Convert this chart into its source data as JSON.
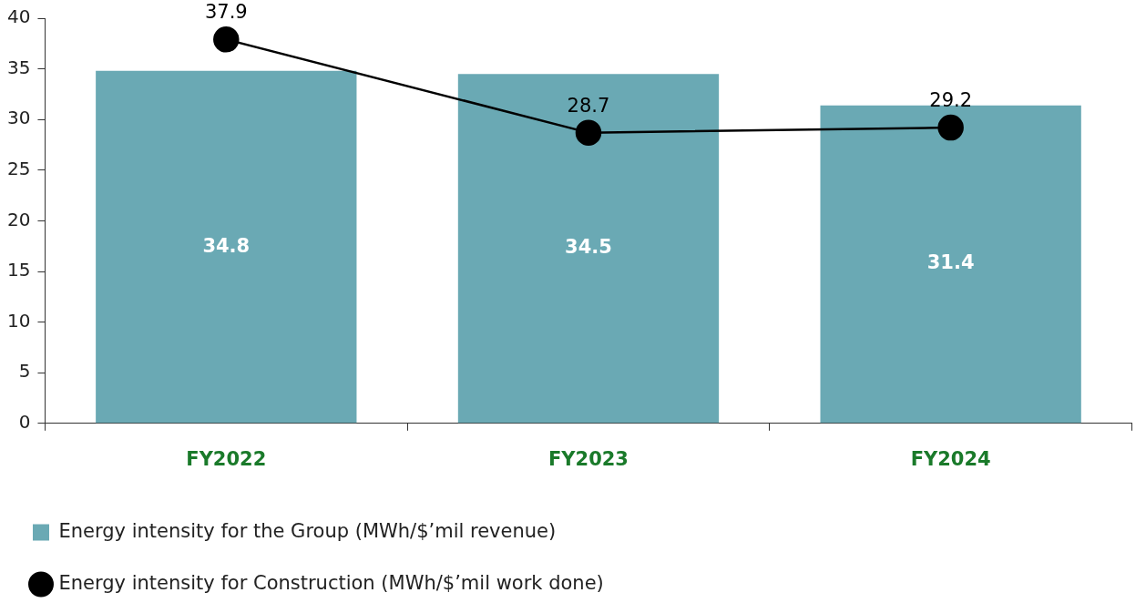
{
  "chart_data": {
    "type": "bar",
    "categories": [
      "FY2022",
      "FY2023",
      "FY2024"
    ],
    "series": [
      {
        "name": "Energy intensity for the Group (MWh/$’mil revenue)",
        "color": "#6aa9b4",
        "values": [
          34.8,
          34.5,
          31.4
        ]
      },
      {
        "name": "Energy intensity for Construction (MWh/$’mil work done)",
        "type": "line",
        "color": "#000000",
        "values": [
          37.9,
          28.7,
          29.2
        ]
      }
    ],
    "ylim": [
      0,
      40
    ],
    "yticks": [
      0,
      5,
      10,
      15,
      20,
      25,
      30,
      35,
      40
    ],
    "grid": false,
    "legend": "bottom",
    "marker": "circle",
    "line_style": "solid",
    "data_labels": true
  }
}
